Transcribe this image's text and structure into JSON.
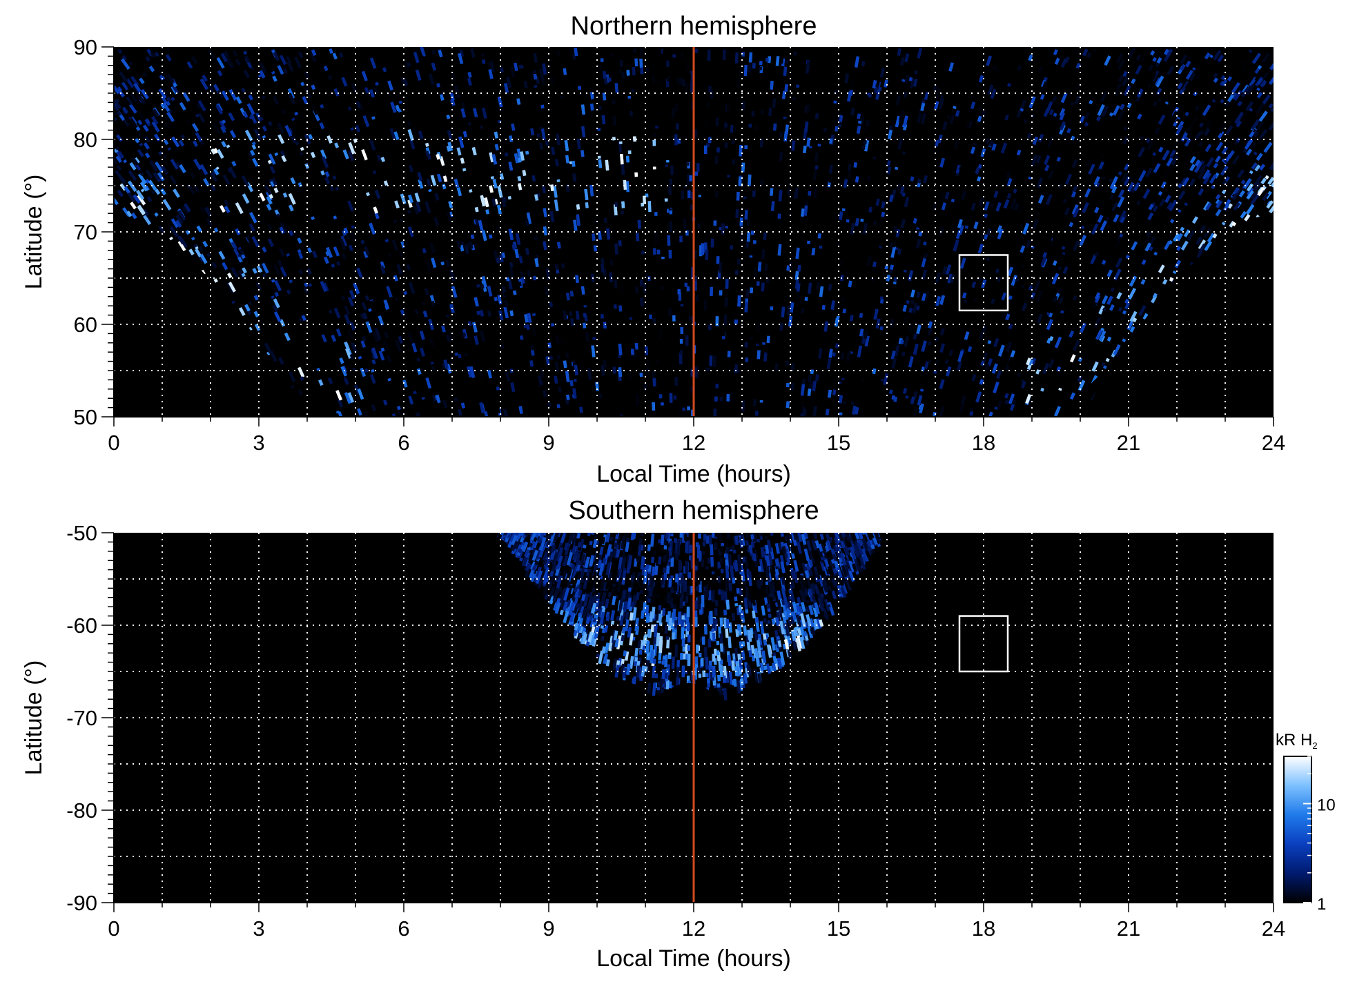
{
  "chart_data": [
    {
      "type": "heatmap",
      "title": "Northern hemisphere",
      "xlabel": "Local Time (hours)",
      "ylabel": "Latitude (°)",
      "xlim": [
        0,
        24
      ],
      "ylim": [
        50,
        90
      ],
      "x_ticks": [
        0,
        3,
        6,
        9,
        12,
        15,
        18,
        21,
        24
      ],
      "y_ticks": [
        50,
        60,
        70,
        80,
        90
      ],
      "grid": true,
      "reference_line": {
        "x": 12,
        "color": "#d24a1e"
      },
      "box": {
        "x": [
          17.5,
          18.5
        ],
        "y": [
          61.5,
          67.5
        ]
      },
      "emission": {
        "coverage_low_latitude": 50,
        "coverage_lt_range_at_50": [
          4.0,
          19.5
        ],
        "main_oval": "bright band curving from ~72° at 0 h and 24 h down to 50° near 4-5 h and 19-20 h",
        "dayside_bright_region_lt": [
          2,
          11.5
        ],
        "dayside_bright_region_lat": [
          72,
          80
        ]
      }
    },
    {
      "type": "heatmap",
      "title": "Southern hemisphere",
      "xlabel": "Local Time (hours)",
      "ylabel": "Latitude (°)",
      "xlim": [
        0,
        24
      ],
      "ylim": [
        -90,
        -50
      ],
      "x_ticks": [
        0,
        3,
        6,
        9,
        12,
        15,
        18,
        21,
        24
      ],
      "y_ticks": [
        -50,
        -60,
        -70,
        -80,
        -90
      ],
      "grid": true,
      "reference_line": {
        "x": 12,
        "color": "#d24a1e"
      },
      "box": {
        "x": [
          17.5,
          18.5
        ],
        "y": [
          -65,
          -59
        ]
      },
      "emission": {
        "coverage_lt_range_at_minus50": [
          8.0,
          15.8
        ],
        "lowest_latitude_reached": -68,
        "bright_oval_latitude": -62
      }
    }
  ],
  "colorbar": {
    "label": "kR H",
    "label_subscript": "2",
    "scale": "log",
    "range": [
      1,
      30
    ],
    "tick_labels": [
      "1",
      "10"
    ],
    "tick_values": [
      1,
      10
    ],
    "colors": [
      "#000000",
      "#001a6e",
      "#0a3fbf",
      "#1f7aea",
      "#7cc0ff",
      "#ffffff"
    ]
  },
  "colors": {
    "background": "#000000",
    "grid": "#ffffff",
    "noon_line": "#d24a1e",
    "box": "#ffffff"
  }
}
